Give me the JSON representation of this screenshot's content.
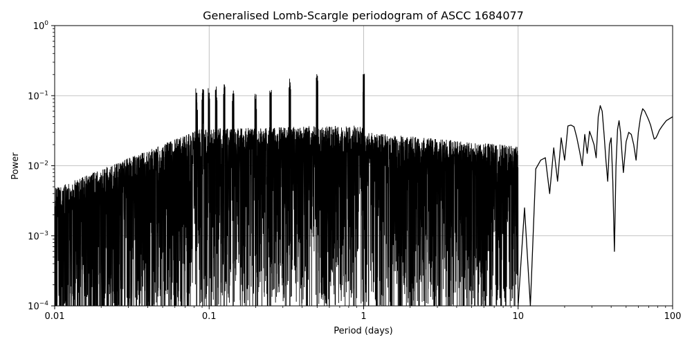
{
  "chart_data": {
    "type": "line",
    "title": "Generalised Lomb-Scargle periodogram of ASCC 1684077",
    "xlabel": "Period (days)",
    "ylabel": "Power",
    "xscale": "log",
    "yscale": "log",
    "xlim": [
      0.01,
      100
    ],
    "ylim": [
      0.0001,
      1
    ],
    "grid": true,
    "line_color": "#000000",
    "grid_color": "#b0b0b0",
    "x_ticks": [
      {
        "value": 0.01,
        "label": "0.01"
      },
      {
        "value": 0.1,
        "label": "0.1"
      },
      {
        "value": 1,
        "label": "1"
      },
      {
        "value": 10,
        "label": "10"
      },
      {
        "value": 100,
        "label": "100"
      }
    ],
    "y_ticks": [
      {
        "value": 0.0001,
        "base": "10",
        "exp": "−4"
      },
      {
        "value": 0.001,
        "base": "10",
        "exp": "−3"
      },
      {
        "value": 0.01,
        "base": "10",
        "exp": "−2"
      },
      {
        "value": 0.1,
        "base": "10",
        "exp": "−1"
      },
      {
        "value": 1,
        "base": "10",
        "exp": "0"
      }
    ],
    "peaks": [
      {
        "x": 0.083,
        "y": 0.11
      },
      {
        "x": 0.091,
        "y": 0.11
      },
      {
        "x": 0.1,
        "y": 0.11
      },
      {
        "x": 0.111,
        "y": 0.12
      },
      {
        "x": 0.125,
        "y": 0.13
      },
      {
        "x": 0.143,
        "y": 0.1
      },
      {
        "x": 0.2,
        "y": 0.09
      },
      {
        "x": 0.25,
        "y": 0.11
      },
      {
        "x": 0.333,
        "y": 0.15
      },
      {
        "x": 0.5,
        "y": 0.17
      },
      {
        "x": 1.0,
        "y": 0.18
      }
    ],
    "series": [
      {
        "x": [
          10,
          11,
          12,
          13,
          14,
          15,
          16,
          17,
          18,
          19,
          20,
          21,
          22,
          23,
          24,
          25,
          26,
          27,
          28,
          29,
          30,
          31,
          32,
          33,
          34,
          35,
          36,
          37,
          38,
          39,
          40,
          41,
          42,
          43,
          44,
          45,
          46,
          47,
          48,
          50,
          52,
          54,
          56,
          58,
          60,
          62,
          64,
          66,
          68,
          70,
          72,
          74,
          76,
          78,
          80,
          82,
          85,
          88,
          91,
          94,
          97,
          100
        ],
        "y": [
          0.0001,
          0.0025,
          0.0001,
          0.009,
          0.012,
          0.013,
          0.004,
          0.018,
          0.006,
          0.025,
          0.012,
          0.037,
          0.038,
          0.036,
          0.025,
          0.016,
          0.01,
          0.028,
          0.015,
          0.031,
          0.025,
          0.02,
          0.013,
          0.05,
          0.072,
          0.06,
          0.028,
          0.012,
          0.006,
          0.02,
          0.025,
          0.006,
          0.0006,
          0.01,
          0.033,
          0.044,
          0.03,
          0.015,
          0.008,
          0.022,
          0.03,
          0.028,
          0.02,
          0.012,
          0.03,
          0.05,
          0.065,
          0.06,
          0.052,
          0.045,
          0.038,
          0.03,
          0.024,
          0.025,
          0.028,
          0.032,
          0.036,
          0.04,
          0.044,
          0.046,
          0.048,
          0.05
        ]
      }
    ]
  }
}
